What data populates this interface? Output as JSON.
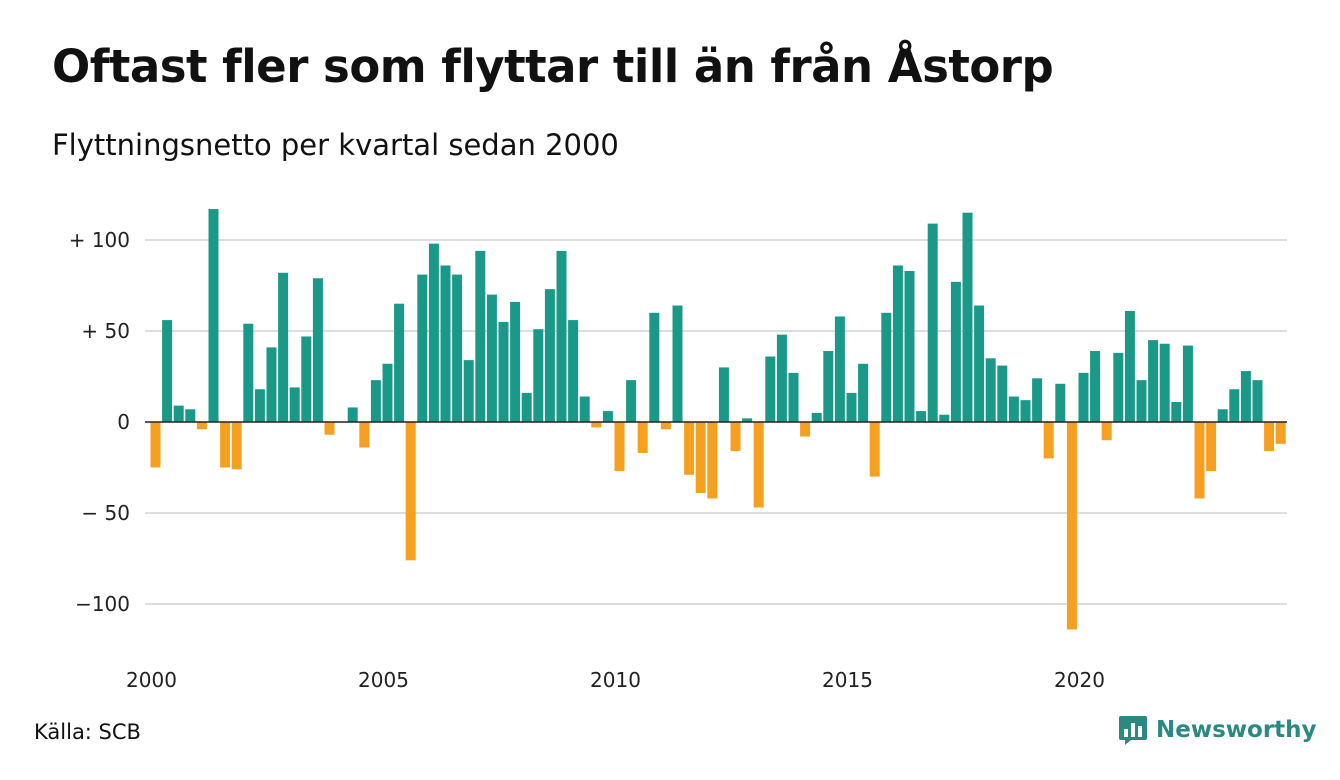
{
  "header": {
    "title": "Oftast fler som flyttar till än från Åstorp",
    "subtitle": "Flyttningsnetto per kvartal sedan 2000"
  },
  "footer": {
    "source": "Källa: SCB",
    "brand": "Newsworthy"
  },
  "colors": {
    "positive": "#1a9988",
    "negative": "#f5a020",
    "grid": "#dddddd",
    "zero_line": "#222222",
    "brand": "#2a8a80"
  },
  "icons": {
    "brand_logo": "bar-chart-bubble-icon"
  },
  "chart_data": {
    "type": "bar",
    "title": "Oftast fler som flyttar till än från Åstorp",
    "subtitle": "Flyttningsnetto per kvartal sedan 2000",
    "xlabel": "",
    "ylabel": "",
    "ylim": [
      -115,
      120
    ],
    "grid": true,
    "yticks": [
      {
        "value": 100,
        "label": "+ 100"
      },
      {
        "value": 50,
        "label": "+  50"
      },
      {
        "value": 0,
        "label": "0"
      },
      {
        "value": -50,
        "label": "− 50"
      },
      {
        "value": -100,
        "label": "−100"
      }
    ],
    "xticks": [
      {
        "value": 0,
        "label": "2000"
      },
      {
        "value": 20,
        "label": "2005"
      },
      {
        "value": 40,
        "label": "2010"
      },
      {
        "value": 60,
        "label": "2015"
      },
      {
        "value": 80,
        "label": "2020"
      }
    ],
    "quarters_start": "2000 Q1",
    "values": [
      -25,
      56,
      9,
      7,
      -4,
      117,
      -25,
      -26,
      54,
      18,
      41,
      82,
      19,
      47,
      79,
      -7,
      0,
      8,
      -14,
      23,
      32,
      65,
      -76,
      81,
      98,
      86,
      81,
      34,
      94,
      70,
      55,
      66,
      16,
      51,
      73,
      94,
      56,
      14,
      -3,
      6,
      -27,
      23,
      -17,
      60,
      -4,
      64,
      -29,
      -39,
      -42,
      30,
      -16,
      2,
      -47,
      36,
      48,
      27,
      -8,
      5,
      39,
      58,
      16,
      32,
      -30,
      60,
      86,
      83,
      6,
      109,
      4,
      77,
      115,
      64,
      35,
      31,
      14,
      12,
      24,
      -20,
      21,
      -114,
      27,
      39,
      -10,
      38,
      61,
      23,
      45,
      43,
      11,
      42,
      -42,
      -27,
      7,
      18,
      28,
      23,
      -16,
      -12
    ]
  }
}
